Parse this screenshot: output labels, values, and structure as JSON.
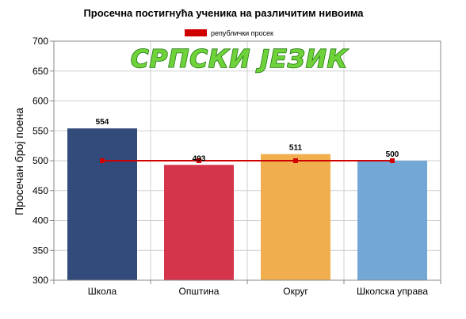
{
  "chart_data": {
    "type": "bar",
    "title": "Просечна постигнућа ученика на различитим нивоима",
    "subject_stamp": "СРПСКИ ЈЕЗИК",
    "ylabel": "Просечан број поена",
    "xlabel": "",
    "ylim": [
      300,
      700
    ],
    "yticks": [
      300,
      350,
      400,
      450,
      500,
      550,
      600,
      650,
      700
    ],
    "grid": true,
    "categories": [
      "Школа",
      "Општина",
      "Округ",
      "Школска управа"
    ],
    "values": [
      554,
      493,
      511,
      500
    ],
    "value_labels": [
      "554",
      "493",
      "511",
      "500"
    ],
    "bar_colors": [
      "#324b7a",
      "#d6344a",
      "#f0ae4f",
      "#73a7d6"
    ],
    "reference_line": {
      "name": "републички просек",
      "value": 500,
      "color": "#d00000"
    },
    "legend": {
      "placement": "top-center"
    }
  }
}
